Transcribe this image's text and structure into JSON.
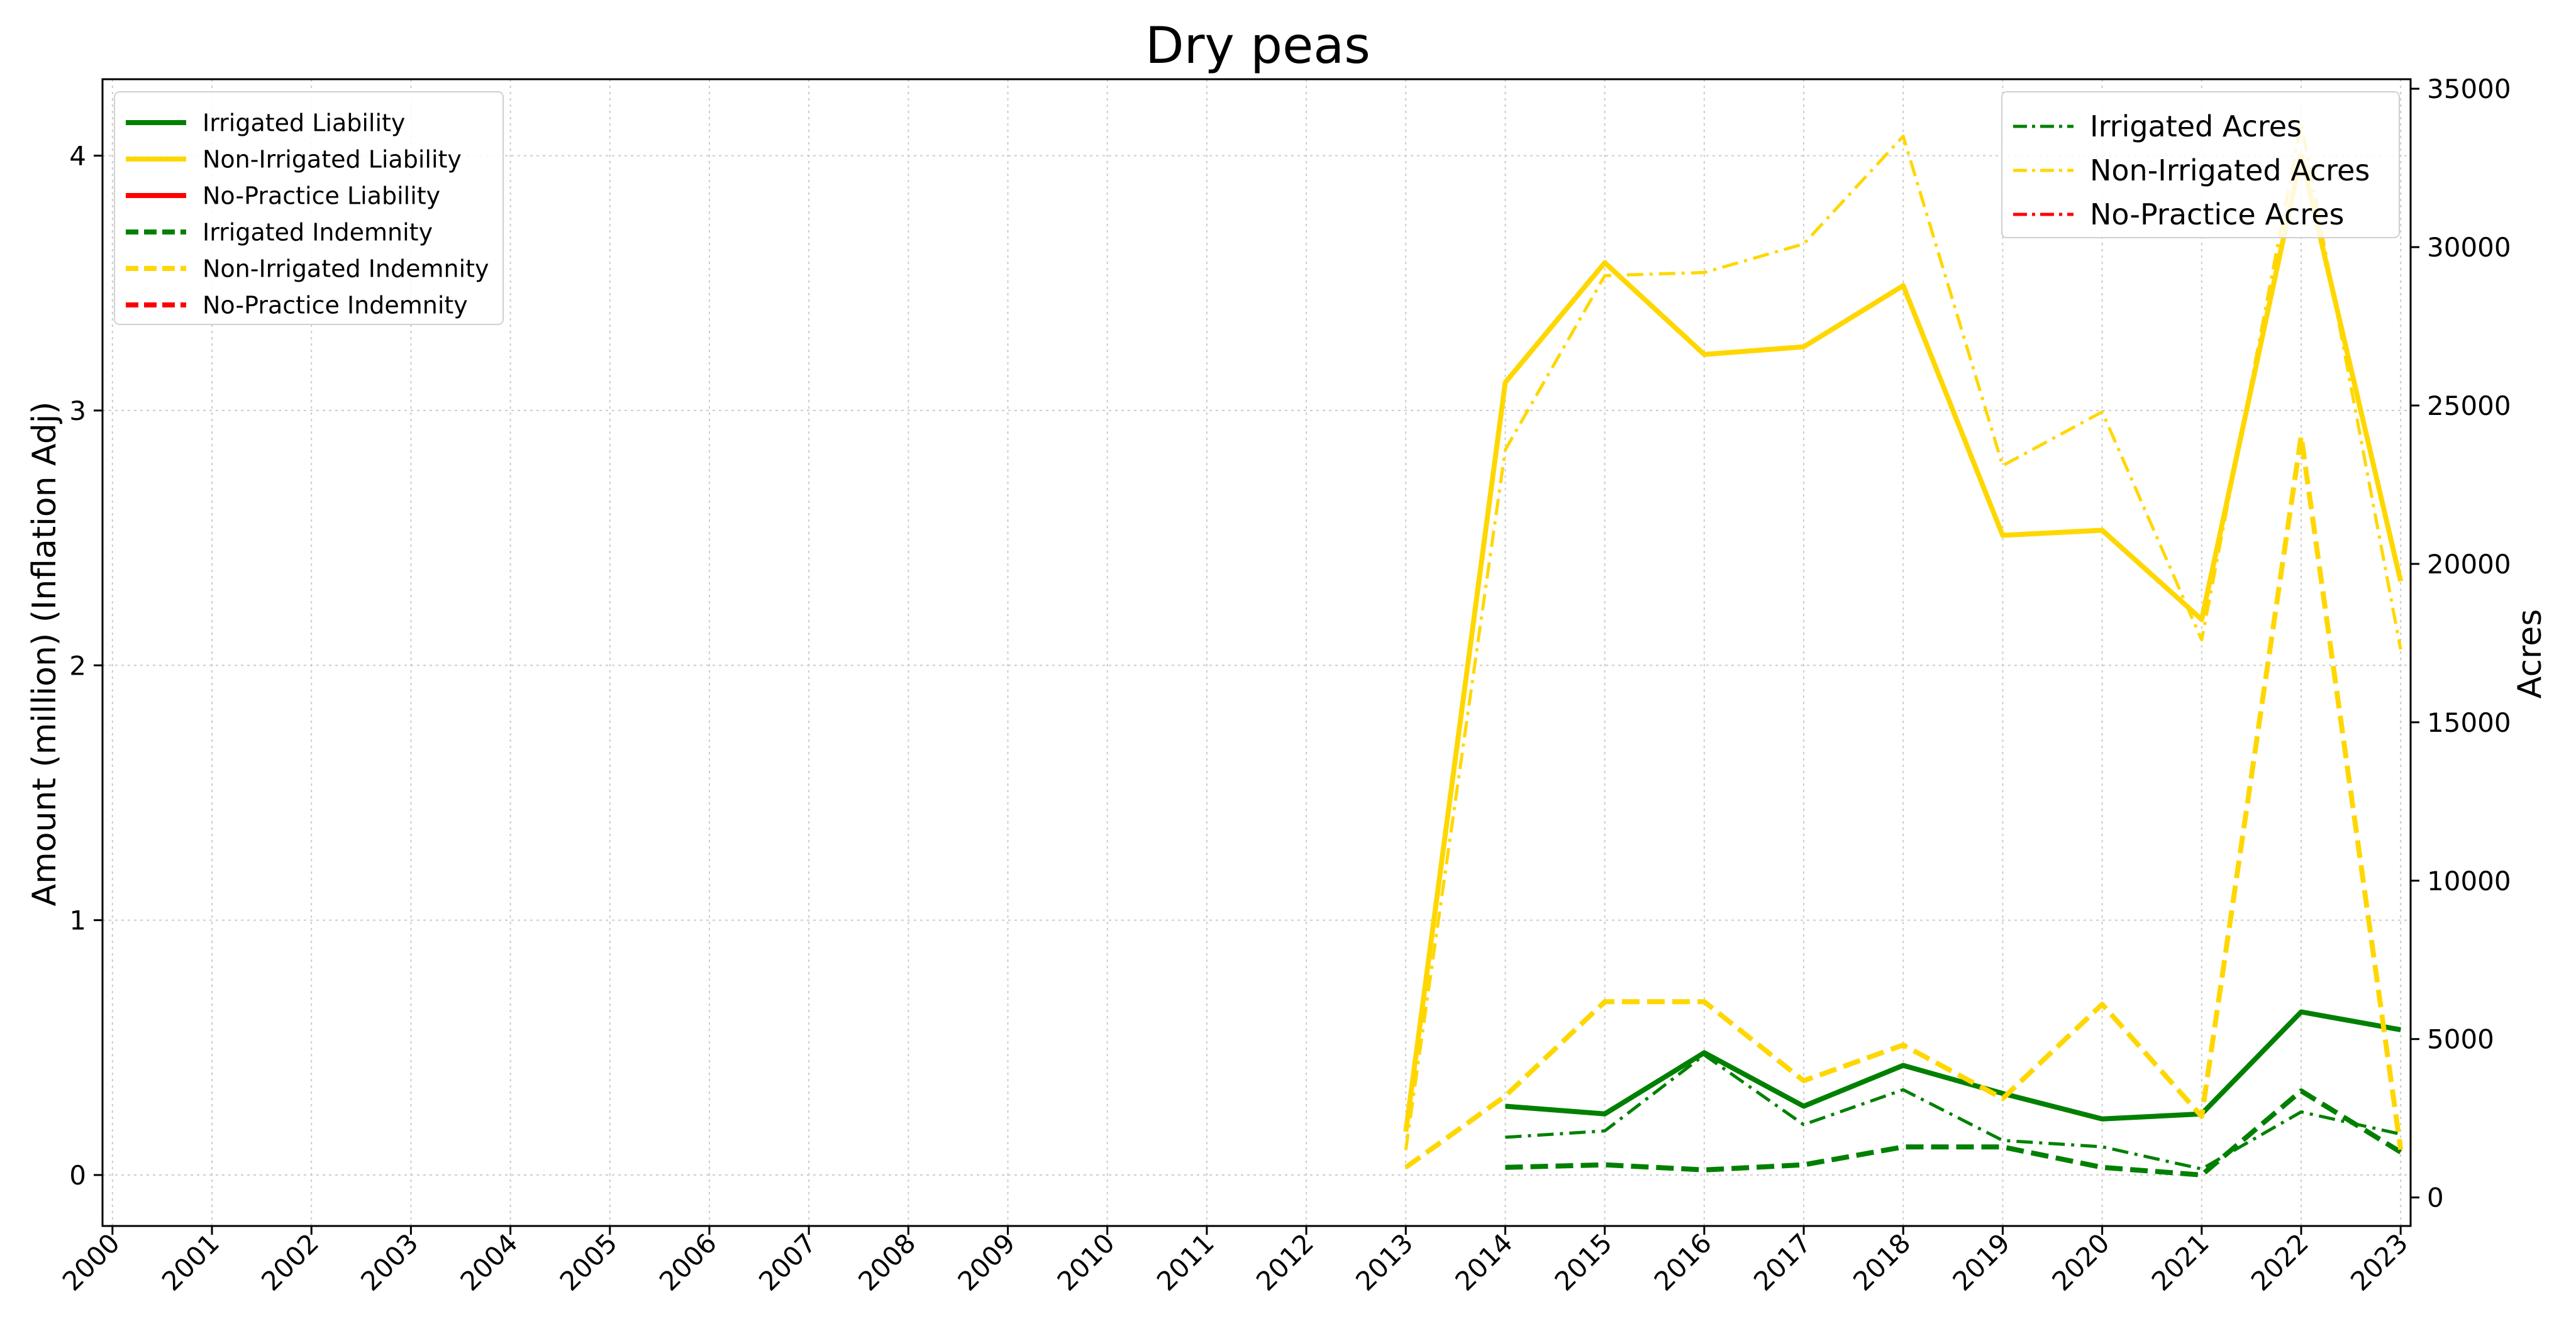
{
  "chart_data": {
    "type": "line",
    "title": "Dry peas",
    "xlabel": "",
    "ylabel": "Amount (million) (Inflation Adj)",
    "y2label": "Acres",
    "x": [
      "2000",
      "2001",
      "2002",
      "2003",
      "2004",
      "2005",
      "2006",
      "2007",
      "2008",
      "2009",
      "2010",
      "2011",
      "2012",
      "2013",
      "2014",
      "2015",
      "2016",
      "2017",
      "2018",
      "2019",
      "2020",
      "2021",
      "2022",
      "2023"
    ],
    "ylim": [
      -0.2,
      4.3
    ],
    "y2lim": [
      -900,
      35300
    ],
    "yticks": [
      0,
      1,
      2,
      3,
      4
    ],
    "y2ticks": [
      0,
      5000,
      10000,
      15000,
      20000,
      25000,
      30000,
      35000
    ],
    "grid": true,
    "legend_left_placement": "top-left",
    "legend_right_placement": "top-right",
    "colors": {
      "irrigated": "#008000",
      "non_irrigated": "#FFD700",
      "no_practice": "#FF0000"
    },
    "series": [
      {
        "name": "Irrigated Liability",
        "axis": "left",
        "style": "solid",
        "color": "#008000",
        "values": [
          null,
          null,
          null,
          null,
          null,
          null,
          null,
          null,
          null,
          null,
          null,
          null,
          null,
          null,
          0.27,
          0.24,
          0.48,
          0.27,
          0.43,
          0.32,
          0.22,
          0.24,
          0.64,
          0.57
        ]
      },
      {
        "name": "Non-Irrigated Liability",
        "axis": "left",
        "style": "solid",
        "color": "#FFD700",
        "values": [
          null,
          null,
          null,
          null,
          null,
          null,
          null,
          null,
          null,
          null,
          null,
          null,
          null,
          0.17,
          3.11,
          3.58,
          3.22,
          3.25,
          3.49,
          2.51,
          2.53,
          2.18,
          4.0,
          2.33
        ]
      },
      {
        "name": "No-Practice Liability",
        "axis": "left",
        "style": "solid",
        "color": "#FF0000",
        "values": [
          null,
          null,
          null,
          null,
          null,
          null,
          null,
          null,
          null,
          null,
          null,
          null,
          null,
          null,
          null,
          null,
          null,
          null,
          null,
          null,
          null,
          null,
          null,
          null
        ]
      },
      {
        "name": "Irrigated Indemnity",
        "axis": "left",
        "style": "dashed",
        "color": "#008000",
        "values": [
          null,
          null,
          null,
          null,
          null,
          null,
          null,
          null,
          null,
          null,
          null,
          null,
          null,
          null,
          0.03,
          0.04,
          0.02,
          0.04,
          0.11,
          0.11,
          0.03,
          0.0,
          0.33,
          0.09
        ]
      },
      {
        "name": "Non-Irrigated Indemnity",
        "axis": "left",
        "style": "dashed",
        "color": "#FFD700",
        "values": [
          null,
          null,
          null,
          null,
          null,
          null,
          null,
          null,
          null,
          null,
          null,
          null,
          null,
          0.03,
          0.31,
          0.68,
          0.68,
          0.37,
          0.51,
          0.3,
          0.67,
          0.23,
          2.9,
          0.1
        ]
      },
      {
        "name": "No-Practice Indemnity",
        "axis": "left",
        "style": "dashed",
        "color": "#FF0000",
        "values": [
          null,
          null,
          null,
          null,
          null,
          null,
          null,
          null,
          null,
          null,
          null,
          null,
          null,
          null,
          null,
          null,
          null,
          null,
          null,
          null,
          null,
          null,
          null,
          null
        ]
      },
      {
        "name": "Irrigated Acres",
        "axis": "right",
        "style": "dashdot",
        "color": "#008000",
        "values": [
          null,
          null,
          null,
          null,
          null,
          null,
          null,
          null,
          null,
          null,
          null,
          null,
          null,
          null,
          1900,
          2100,
          4500,
          2300,
          3400,
          1800,
          1600,
          900,
          2700,
          2000
        ]
      },
      {
        "name": "Non-Irrigated Acres",
        "axis": "right",
        "style": "dashdot",
        "color": "#FFD700",
        "values": [
          null,
          null,
          null,
          null,
          null,
          null,
          null,
          null,
          null,
          null,
          null,
          null,
          null,
          1500,
          23600,
          29100,
          29200,
          30100,
          33500,
          23100,
          24800,
          17600,
          33900,
          17300
        ]
      },
      {
        "name": "No-Practice Acres",
        "axis": "right",
        "style": "dashdot",
        "color": "#FF0000",
        "values": [
          null,
          null,
          null,
          null,
          null,
          null,
          null,
          null,
          null,
          null,
          null,
          null,
          null,
          null,
          null,
          null,
          null,
          null,
          null,
          null,
          null,
          null,
          null,
          null
        ]
      }
    ]
  }
}
